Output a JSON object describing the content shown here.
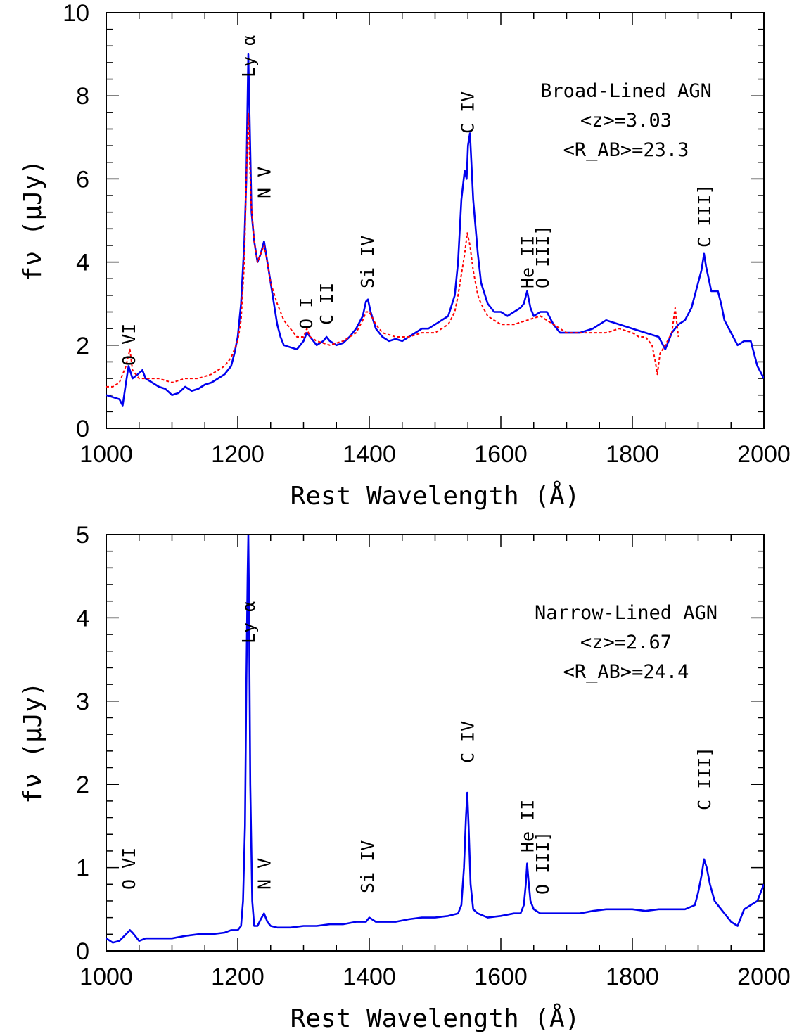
{
  "colors": {
    "spectrum": "#0000ee",
    "comparison": "#ff0000",
    "axis": "#000000"
  },
  "chart_data": [
    {
      "type": "line",
      "xlabel": "Rest Wavelength (Å)",
      "ylabel": "fν (μJy)",
      "xlim": [
        1000,
        2000
      ],
      "ylim": [
        0,
        10
      ],
      "xticks": [
        1000,
        1200,
        1400,
        1600,
        1800,
        2000
      ],
      "yticks": [
        0,
        2,
        4,
        6,
        8,
        10
      ],
      "annotation": [
        "Broad-Lined AGN",
        "<z>=3.03",
        "<R_AB>=23.3"
      ],
      "line_labels": [
        {
          "text": "O VI",
          "x": 1034
        },
        {
          "text": "Ly α",
          "x": 1216
        },
        {
          "text": "N V",
          "x": 1240
        },
        {
          "text": "O I",
          "x": 1304
        },
        {
          "text": "C II",
          "x": 1335
        },
        {
          "text": "Si IV",
          "x": 1397
        },
        {
          "text": "C IV",
          "x": 1549
        },
        {
          "text": "He II",
          "x": 1640
        },
        {
          "text": "O III]",
          "x": 1663
        },
        {
          "text": "C III]",
          "x": 1909
        }
      ],
      "series": [
        {
          "style": "solid",
          "color": "#0000ee",
          "x": [
            1000,
            1010,
            1020,
            1025,
            1030,
            1034,
            1040,
            1048,
            1055,
            1060,
            1070,
            1080,
            1090,
            1100,
            1110,
            1120,
            1130,
            1140,
            1150,
            1160,
            1170,
            1180,
            1190,
            1195,
            1200,
            1205,
            1210,
            1213,
            1216,
            1218,
            1221,
            1225,
            1230,
            1235,
            1240,
            1245,
            1250,
            1255,
            1260,
            1265,
            1270,
            1280,
            1290,
            1300,
            1305,
            1310,
            1320,
            1330,
            1335,
            1340,
            1350,
            1360,
            1370,
            1380,
            1390,
            1395,
            1398,
            1402,
            1410,
            1420,
            1430,
            1440,
            1450,
            1460,
            1470,
            1480,
            1490,
            1500,
            1510,
            1520,
            1530,
            1535,
            1540,
            1545,
            1548,
            1550,
            1553,
            1558,
            1565,
            1570,
            1580,
            1590,
            1600,
            1610,
            1620,
            1630,
            1635,
            1640,
            1645,
            1650,
            1660,
            1665,
            1670,
            1680,
            1690,
            1700,
            1720,
            1740,
            1760,
            1780,
            1800,
            1820,
            1840,
            1850,
            1860,
            1870,
            1880,
            1890,
            1900,
            1905,
            1909,
            1912,
            1916,
            1920,
            1925,
            1930,
            1935,
            1940,
            1950,
            1960,
            1970,
            1980,
            1990,
            2000
          ],
          "y": [
            0.8,
            0.75,
            0.7,
            0.55,
            1.1,
            1.5,
            1.2,
            1.3,
            1.4,
            1.2,
            1.1,
            1.0,
            0.95,
            0.8,
            0.85,
            1.0,
            0.9,
            0.95,
            1.05,
            1.1,
            1.2,
            1.3,
            1.5,
            1.8,
            2.2,
            3.0,
            4.5,
            6.0,
            9.0,
            7.5,
            5.2,
            4.5,
            4.0,
            4.2,
            4.5,
            4.0,
            3.5,
            3.0,
            2.5,
            2.2,
            2.0,
            1.95,
            1.9,
            2.1,
            2.3,
            2.2,
            2.0,
            2.1,
            2.2,
            2.1,
            2.0,
            2.05,
            2.2,
            2.4,
            2.7,
            3.05,
            3.1,
            2.8,
            2.4,
            2.2,
            2.1,
            2.15,
            2.1,
            2.2,
            2.3,
            2.4,
            2.4,
            2.5,
            2.6,
            2.7,
            3.2,
            4.0,
            5.5,
            6.2,
            6.0,
            6.8,
            7.1,
            5.5,
            4.2,
            3.5,
            3.0,
            2.8,
            2.8,
            2.7,
            2.8,
            2.9,
            3.0,
            3.3,
            2.9,
            2.7,
            2.8,
            2.8,
            2.8,
            2.5,
            2.3,
            2.3,
            2.3,
            2.4,
            2.6,
            2.5,
            2.4,
            2.3,
            2.2,
            1.9,
            2.3,
            2.5,
            2.6,
            2.9,
            3.5,
            3.8,
            4.2,
            3.9,
            3.6,
            3.3,
            3.3,
            3.3,
            3.0,
            2.6,
            2.3,
            2.0,
            2.1,
            2.1,
            1.5,
            1.2
          ]
        },
        {
          "style": "dotted",
          "color": "#ff0000",
          "x": [
            1000,
            1010,
            1020,
            1030,
            1036,
            1040,
            1050,
            1060,
            1080,
            1100,
            1120,
            1140,
            1160,
            1180,
            1190,
            1200,
            1205,
            1210,
            1213,
            1216,
            1220,
            1225,
            1230,
            1235,
            1240,
            1245,
            1250,
            1260,
            1270,
            1280,
            1290,
            1300,
            1305,
            1310,
            1320,
            1340,
            1360,
            1380,
            1390,
            1395,
            1400,
            1410,
            1420,
            1440,
            1460,
            1480,
            1500,
            1520,
            1530,
            1535,
            1540,
            1545,
            1549,
            1553,
            1558,
            1565,
            1570,
            1580,
            1590,
            1600,
            1620,
            1640,
            1660,
            1680,
            1700,
            1720,
            1740,
            1760,
            1780,
            1800,
            1810,
            1820,
            1830,
            1835,
            1838,
            1842,
            1850,
            1860,
            1865,
            1870
          ],
          "y": [
            1.0,
            1.0,
            1.1,
            1.5,
            1.9,
            1.4,
            1.2,
            1.2,
            1.2,
            1.1,
            1.2,
            1.2,
            1.3,
            1.5,
            1.7,
            2.1,
            2.6,
            4.0,
            6.0,
            7.6,
            5.5,
            4.5,
            4.0,
            4.2,
            4.4,
            4.0,
            3.5,
            3.0,
            2.6,
            2.4,
            2.2,
            2.2,
            2.4,
            2.2,
            2.1,
            2.0,
            2.1,
            2.3,
            2.6,
            2.8,
            2.8,
            2.5,
            2.3,
            2.2,
            2.2,
            2.3,
            2.3,
            2.5,
            2.8,
            3.2,
            3.7,
            4.2,
            4.7,
            4.4,
            3.8,
            3.2,
            3.0,
            2.7,
            2.6,
            2.5,
            2.5,
            2.6,
            2.7,
            2.5,
            2.3,
            2.3,
            2.3,
            2.3,
            2.4,
            2.3,
            2.2,
            2.2,
            2.0,
            1.6,
            1.3,
            1.8,
            2.0,
            2.3,
            2.9,
            2.2
          ]
        }
      ]
    },
    {
      "type": "line",
      "xlabel": "Rest Wavelength (Å)",
      "ylabel": "fν (μJy)",
      "xlim": [
        1000,
        2000
      ],
      "ylim": [
        0,
        5
      ],
      "xticks": [
        1000,
        1200,
        1400,
        1600,
        1800,
        2000
      ],
      "yticks": [
        0,
        1,
        2,
        3,
        4,
        5
      ],
      "annotation": [
        "Narrow-Lined AGN",
        "<z>=2.67",
        "<R_AB>=24.4"
      ],
      "line_labels": [
        {
          "text": "O VI",
          "x": 1034
        },
        {
          "text": "Ly α",
          "x": 1216
        },
        {
          "text": "N V",
          "x": 1240
        },
        {
          "text": "Si IV",
          "x": 1397
        },
        {
          "text": "C IV",
          "x": 1549
        },
        {
          "text": "He II",
          "x": 1640
        },
        {
          "text": "O III]",
          "x": 1663
        },
        {
          "text": "C III]",
          "x": 1909
        }
      ],
      "series": [
        {
          "style": "solid",
          "color": "#0000ee",
          "x": [
            1000,
            1010,
            1020,
            1030,
            1036,
            1040,
            1050,
            1060,
            1080,
            1100,
            1120,
            1140,
            1160,
            1180,
            1190,
            1200,
            1205,
            1208,
            1211,
            1213,
            1215,
            1216,
            1217,
            1219,
            1222,
            1225,
            1230,
            1235,
            1240,
            1245,
            1250,
            1260,
            1280,
            1300,
            1320,
            1340,
            1360,
            1380,
            1395,
            1400,
            1410,
            1420,
            1440,
            1460,
            1480,
            1500,
            1520,
            1535,
            1540,
            1544,
            1547,
            1549,
            1551,
            1554,
            1558,
            1565,
            1580,
            1600,
            1620,
            1630,
            1635,
            1638,
            1640,
            1642,
            1645,
            1650,
            1660,
            1680,
            1700,
            1720,
            1740,
            1760,
            1780,
            1800,
            1820,
            1840,
            1860,
            1880,
            1895,
            1900,
            1905,
            1909,
            1913,
            1918,
            1925,
            1935,
            1950,
            1960,
            1970,
            1980,
            1990,
            2000
          ],
          "y": [
            0.15,
            0.1,
            0.12,
            0.2,
            0.25,
            0.22,
            0.12,
            0.15,
            0.15,
            0.15,
            0.18,
            0.2,
            0.2,
            0.22,
            0.25,
            0.25,
            0.3,
            0.6,
            1.5,
            3.2,
            4.5,
            5.0,
            4.3,
            2.0,
            0.6,
            0.3,
            0.3,
            0.38,
            0.45,
            0.35,
            0.3,
            0.28,
            0.28,
            0.3,
            0.3,
            0.32,
            0.32,
            0.35,
            0.35,
            0.4,
            0.35,
            0.35,
            0.35,
            0.38,
            0.4,
            0.4,
            0.42,
            0.45,
            0.55,
            1.0,
            1.6,
            1.9,
            1.5,
            0.8,
            0.5,
            0.45,
            0.4,
            0.42,
            0.45,
            0.45,
            0.55,
            0.8,
            1.05,
            0.85,
            0.6,
            0.5,
            0.45,
            0.45,
            0.45,
            0.45,
            0.48,
            0.5,
            0.5,
            0.5,
            0.48,
            0.5,
            0.5,
            0.5,
            0.55,
            0.7,
            0.9,
            1.1,
            1.0,
            0.8,
            0.6,
            0.5,
            0.35,
            0.3,
            0.5,
            0.55,
            0.6,
            0.8
          ]
        }
      ]
    }
  ]
}
